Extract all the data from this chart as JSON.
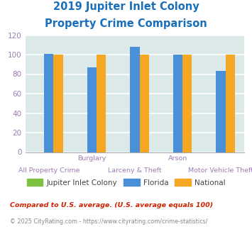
{
  "title_line1": "2019 Jupiter Inlet Colony",
  "title_line2": "Property Crime Comparison",
  "title_color": "#1a6fbb",
  "categories": [
    "All Property Crime",
    "Burglary",
    "Larceny & Theft",
    "Arson",
    "Motor Vehicle Theft"
  ],
  "top_labels": [
    "",
    "Burglary",
    "",
    "Arson",
    ""
  ],
  "bottom_labels": [
    "All Property Crime",
    "",
    "Larceny & Theft",
    "",
    "Motor Vehicle Theft"
  ],
  "series": {
    "Jupiter Inlet Colony": [
      0,
      0,
      0,
      0,
      0
    ],
    "Florida": [
      101,
      87,
      108,
      100,
      83
    ],
    "National": [
      100,
      100,
      100,
      100,
      100
    ]
  },
  "bar_colors": {
    "Jupiter Inlet Colony": "#7dc142",
    "Florida": "#4a90d9",
    "National": "#f5a623"
  },
  "ylim": [
    0,
    120
  ],
  "yticks": [
    0,
    20,
    40,
    60,
    80,
    100,
    120
  ],
  "background_color": "#dce9e9",
  "grid_color": "#ffffff",
  "tick_label_color": "#9b7db5",
  "legend_label_color": "#444444",
  "footnote1": "Compared to U.S. average. (U.S. average equals 100)",
  "footnote2": "© 2025 CityRating.com - https://www.cityrating.com/crime-statistics/",
  "footnote1_color": "#cc2200",
  "footnote2_color": "#888888",
  "bar_width": 0.22
}
